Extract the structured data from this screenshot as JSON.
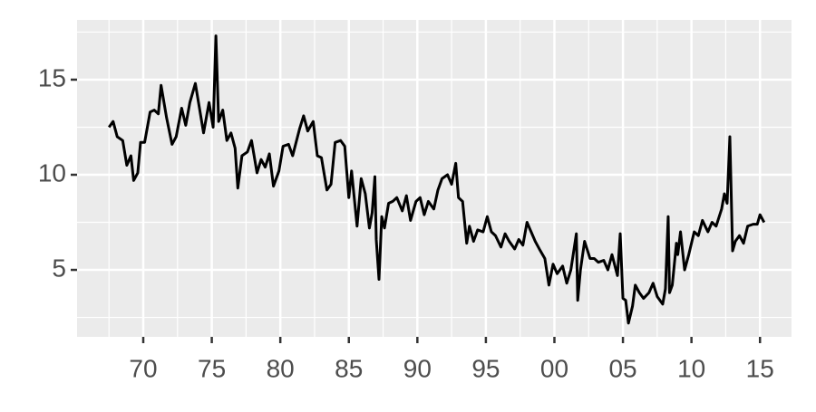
{
  "chart_data": {
    "type": "line",
    "color": "#000000",
    "grid": true,
    "x": [
      67.5,
      67.8,
      68.1,
      68.5,
      68.8,
      69.1,
      69.3,
      69.6,
      69.8,
      70.1,
      70.5,
      70.8,
      71.1,
      71.3,
      71.7,
      72.1,
      72.4,
      72.8,
      73.1,
      73.4,
      73.8,
      74.1,
      74.4,
      74.8,
      75.1,
      75.3,
      75.5,
      75.8,
      76.1,
      76.4,
      76.7,
      76.9,
      77.2,
      77.6,
      77.9,
      78.3,
      78.6,
      78.9,
      79.2,
      79.5,
      79.9,
      80.2,
      80.6,
      80.9,
      81.4,
      81.7,
      82.0,
      82.4,
      82.7,
      83.0,
      83.4,
      83.7,
      84.0,
      84.4,
      84.7,
      85.0,
      85.2,
      85.6,
      85.9,
      86.2,
      86.5,
      86.7,
      86.9,
      87.0,
      87.2,
      87.4,
      87.6,
      87.9,
      88.2,
      88.5,
      88.9,
      89.2,
      89.5,
      89.9,
      90.2,
      90.5,
      90.8,
      91.2,
      91.5,
      91.8,
      92.2,
      92.5,
      92.8,
      93.0,
      93.3,
      93.6,
      93.8,
      94.1,
      94.4,
      94.8,
      95.1,
      95.4,
      95.7,
      96.1,
      96.4,
      96.7,
      97.1,
      97.4,
      97.7,
      98.0,
      98.3,
      98.6,
      98.9,
      99.3,
      99.6,
      99.9,
      100.2,
      100.6,
      100.9,
      101.2,
      101.6,
      101.7,
      101.9,
      102.2,
      102.6,
      102.9,
      103.2,
      103.6,
      103.9,
      104.2,
      104.6,
      104.8,
      105.0,
      105.2,
      105.4,
      105.7,
      105.9,
      106.2,
      106.5,
      106.9,
      107.2,
      107.5,
      107.9,
      108.1,
      108.3,
      108.4,
      108.6,
      108.9,
      109.0,
      109.2,
      109.5,
      109.8,
      110.2,
      110.5,
      110.8,
      111.2,
      111.5,
      111.8,
      112.2,
      112.4,
      112.6,
      112.8,
      113.0,
      113.2,
      113.5,
      113.8,
      114.1,
      114.5,
      114.8,
      115.0,
      115.3
    ],
    "values": [
      12.5,
      12.8,
      12.0,
      11.8,
      10.5,
      11.0,
      9.7,
      10.1,
      11.7,
      11.7,
      13.3,
      13.4,
      13.2,
      14.7,
      13.0,
      11.6,
      12.0,
      13.5,
      12.6,
      13.8,
      14.8,
      13.5,
      12.2,
      13.8,
      12.5,
      17.3,
      12.8,
      13.4,
      11.8,
      12.2,
      11.4,
      9.3,
      11.0,
      11.2,
      11.8,
      10.1,
      10.8,
      10.4,
      11.1,
      9.4,
      10.2,
      11.5,
      11.6,
      11.0,
      12.4,
      13.1,
      12.3,
      12.8,
      11.0,
      10.9,
      9.2,
      9.5,
      11.7,
      11.8,
      11.5,
      8.8,
      10.2,
      7.3,
      9.8,
      9.0,
      7.2,
      8.0,
      9.9,
      6.6,
      4.5,
      7.8,
      7.2,
      8.5,
      8.6,
      8.8,
      8.1,
      8.9,
      7.6,
      8.6,
      8.8,
      7.9,
      8.6,
      8.2,
      9.2,
      9.8,
      10.0,
      9.5,
      10.6,
      8.8,
      8.6,
      6.4,
      7.3,
      6.5,
      7.1,
      7.0,
      7.8,
      7.0,
      6.8,
      6.2,
      6.9,
      6.5,
      6.1,
      6.6,
      6.3,
      7.5,
      7.0,
      6.5,
      6.1,
      5.6,
      4.2,
      5.3,
      4.8,
      5.2,
      4.3,
      5.0,
      6.9,
      3.4,
      5.0,
      6.5,
      5.6,
      5.6,
      5.4,
      5.5,
      5.0,
      5.8,
      4.7,
      6.9,
      3.5,
      3.4,
      2.2,
      3.1,
      4.2,
      3.8,
      3.5,
      3.8,
      4.3,
      3.6,
      3.2,
      4.0,
      7.8,
      3.8,
      4.2,
      6.4,
      5.8,
      7.0,
      5.0,
      5.8,
      7.0,
      6.8,
      7.6,
      7.0,
      7.5,
      7.3,
      8.2,
      9.0,
      8.5,
      12.0,
      6.0,
      6.5,
      6.8,
      6.4,
      7.3,
      7.4,
      7.4,
      7.9,
      7.5
    ],
    "xlim": [
      65.17,
      117.3
    ],
    "xticks": [
      70,
      75,
      80,
      85,
      90,
      95,
      {
        "value": 100,
        "label": "00"
      },
      {
        "value": 105,
        "label": "05"
      },
      {
        "value": 110,
        "label": "10"
      },
      {
        "value": 115,
        "label": "15"
      }
    ],
    "x_minor_ticks": [
      67.5,
      72.5,
      77.5,
      82.5,
      87.5,
      92.5,
      97.5,
      102.5,
      107.5,
      112.5
    ],
    "ylim": [
      1.48,
      18.14
    ],
    "yticks": [
      5,
      10,
      15
    ],
    "y_minor_ticks": [
      2.5,
      7.5,
      12.5,
      17.5
    ]
  }
}
